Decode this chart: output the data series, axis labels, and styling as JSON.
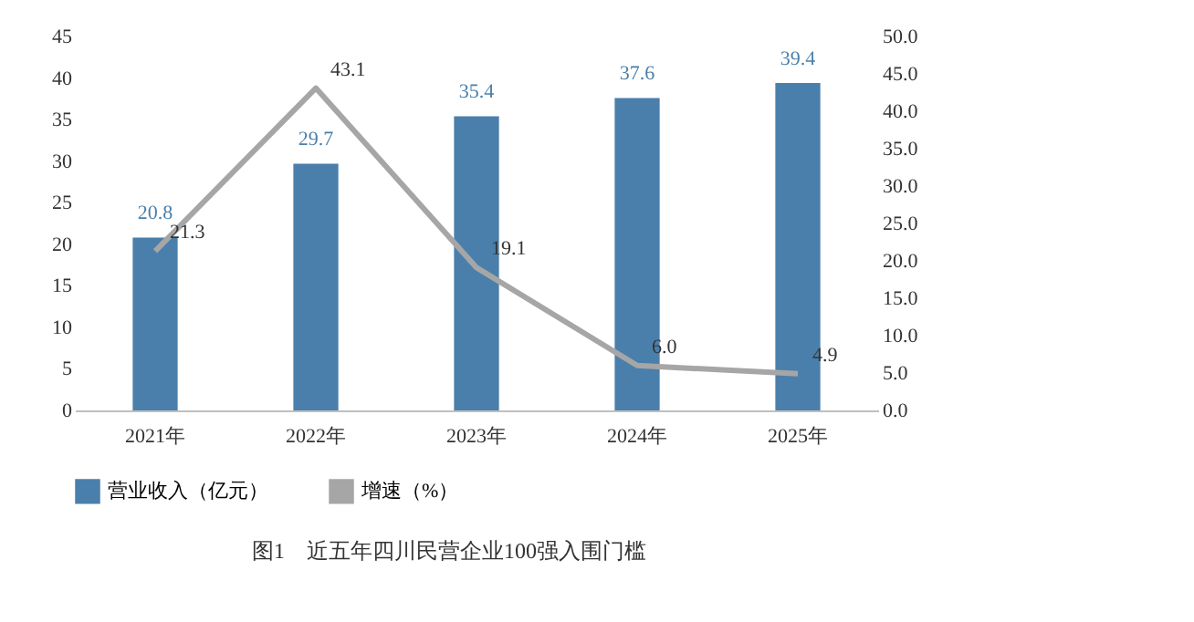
{
  "chart_data": {
    "type": "bar",
    "title": "图1　近五年四川民营企业100强入围门槛",
    "categories": [
      "2021年",
      "2022年",
      "2023年",
      "2024年",
      "2025年"
    ],
    "series": [
      {
        "name": "营业收入（亿元）",
        "color": "#4a7fab",
        "values": [
          20.8,
          29.7,
          35.4,
          37.6,
          39.4
        ],
        "value_labels": [
          "20.8",
          "29.7",
          "35.4",
          "37.6",
          "39.4"
        ]
      },
      {
        "name": "增速（%）",
        "type": "line",
        "axis": "y2",
        "color": "#a6a6a6",
        "values": [
          21.3,
          43.1,
          19.1,
          6.0,
          4.9
        ],
        "value_labels": [
          "21.3",
          "43.1",
          "19.1",
          "6.0",
          "4.9"
        ]
      }
    ],
    "ylim": [
      0,
      45
    ],
    "yticks": [
      0,
      5,
      10,
      15,
      20,
      25,
      30,
      35,
      40,
      45
    ],
    "y2lim": [
      0,
      50
    ],
    "y2ticks": [
      {
        "value": 0,
        "label": "0.0"
      },
      {
        "value": 5,
        "label": "5.0"
      },
      {
        "value": 10,
        "label": "10.0"
      },
      {
        "value": 15,
        "label": "15.0"
      },
      {
        "value": 20,
        "label": "20.0"
      },
      {
        "value": 25,
        "label": "25.0"
      },
      {
        "value": 30,
        "label": "30.0"
      },
      {
        "value": 35,
        "label": "35.0"
      },
      {
        "value": 40,
        "label": "40.0"
      },
      {
        "value": 45,
        "label": "45.0"
      },
      {
        "value": 50,
        "label": "50.0"
      }
    ],
    "grid": false,
    "legend": "bottom",
    "marker": "none",
    "line_style": "solid"
  }
}
